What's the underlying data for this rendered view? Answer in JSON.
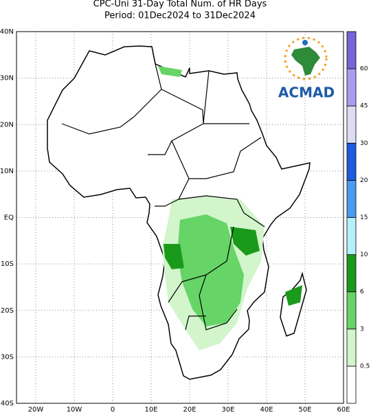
{
  "header": {
    "title": "CPC-Uni 31-Day Total Num. of HR Days",
    "subtitle": "Period: 01Dec2024 to 31Dec2024"
  },
  "map": {
    "lon_range": [
      -25,
      60
    ],
    "lat_range": [
      -40,
      40
    ],
    "lon_ticks": [
      {
        "value": -20,
        "label": "20W"
      },
      {
        "value": -10,
        "label": "10W"
      },
      {
        "value": 0,
        "label": "0"
      },
      {
        "value": 10,
        "label": "10E"
      },
      {
        "value": 20,
        "label": "20E"
      },
      {
        "value": 30,
        "label": "30E"
      },
      {
        "value": 40,
        "label": "40E"
      },
      {
        "value": 50,
        "label": "50E"
      },
      {
        "value": 60,
        "label": "60E"
      }
    ],
    "lat_ticks": [
      {
        "value": 40,
        "label": "40N"
      },
      {
        "value": 30,
        "label": "30N"
      },
      {
        "value": 20,
        "label": "20N"
      },
      {
        "value": 10,
        "label": "10N"
      },
      {
        "value": 0,
        "label": "EQ"
      },
      {
        "value": -10,
        "label": "10S"
      },
      {
        "value": -20,
        "label": "20S"
      },
      {
        "value": -30,
        "label": "30S"
      },
      {
        "value": -40,
        "label": "40S"
      }
    ]
  },
  "colorbar": {
    "levels": [
      0.5,
      3,
      6,
      10,
      15,
      20,
      30,
      45,
      60
    ],
    "colors": [
      "#ffffff",
      "#d2f5cc",
      "#66d466",
      "#1a9a1a",
      "#b4f0fa",
      "#4a9af0",
      "#1e5adc",
      "#dcdcf5",
      "#a89cf0",
      "#7664d8"
    ]
  },
  "logo": {
    "text": "ACMAD"
  }
}
